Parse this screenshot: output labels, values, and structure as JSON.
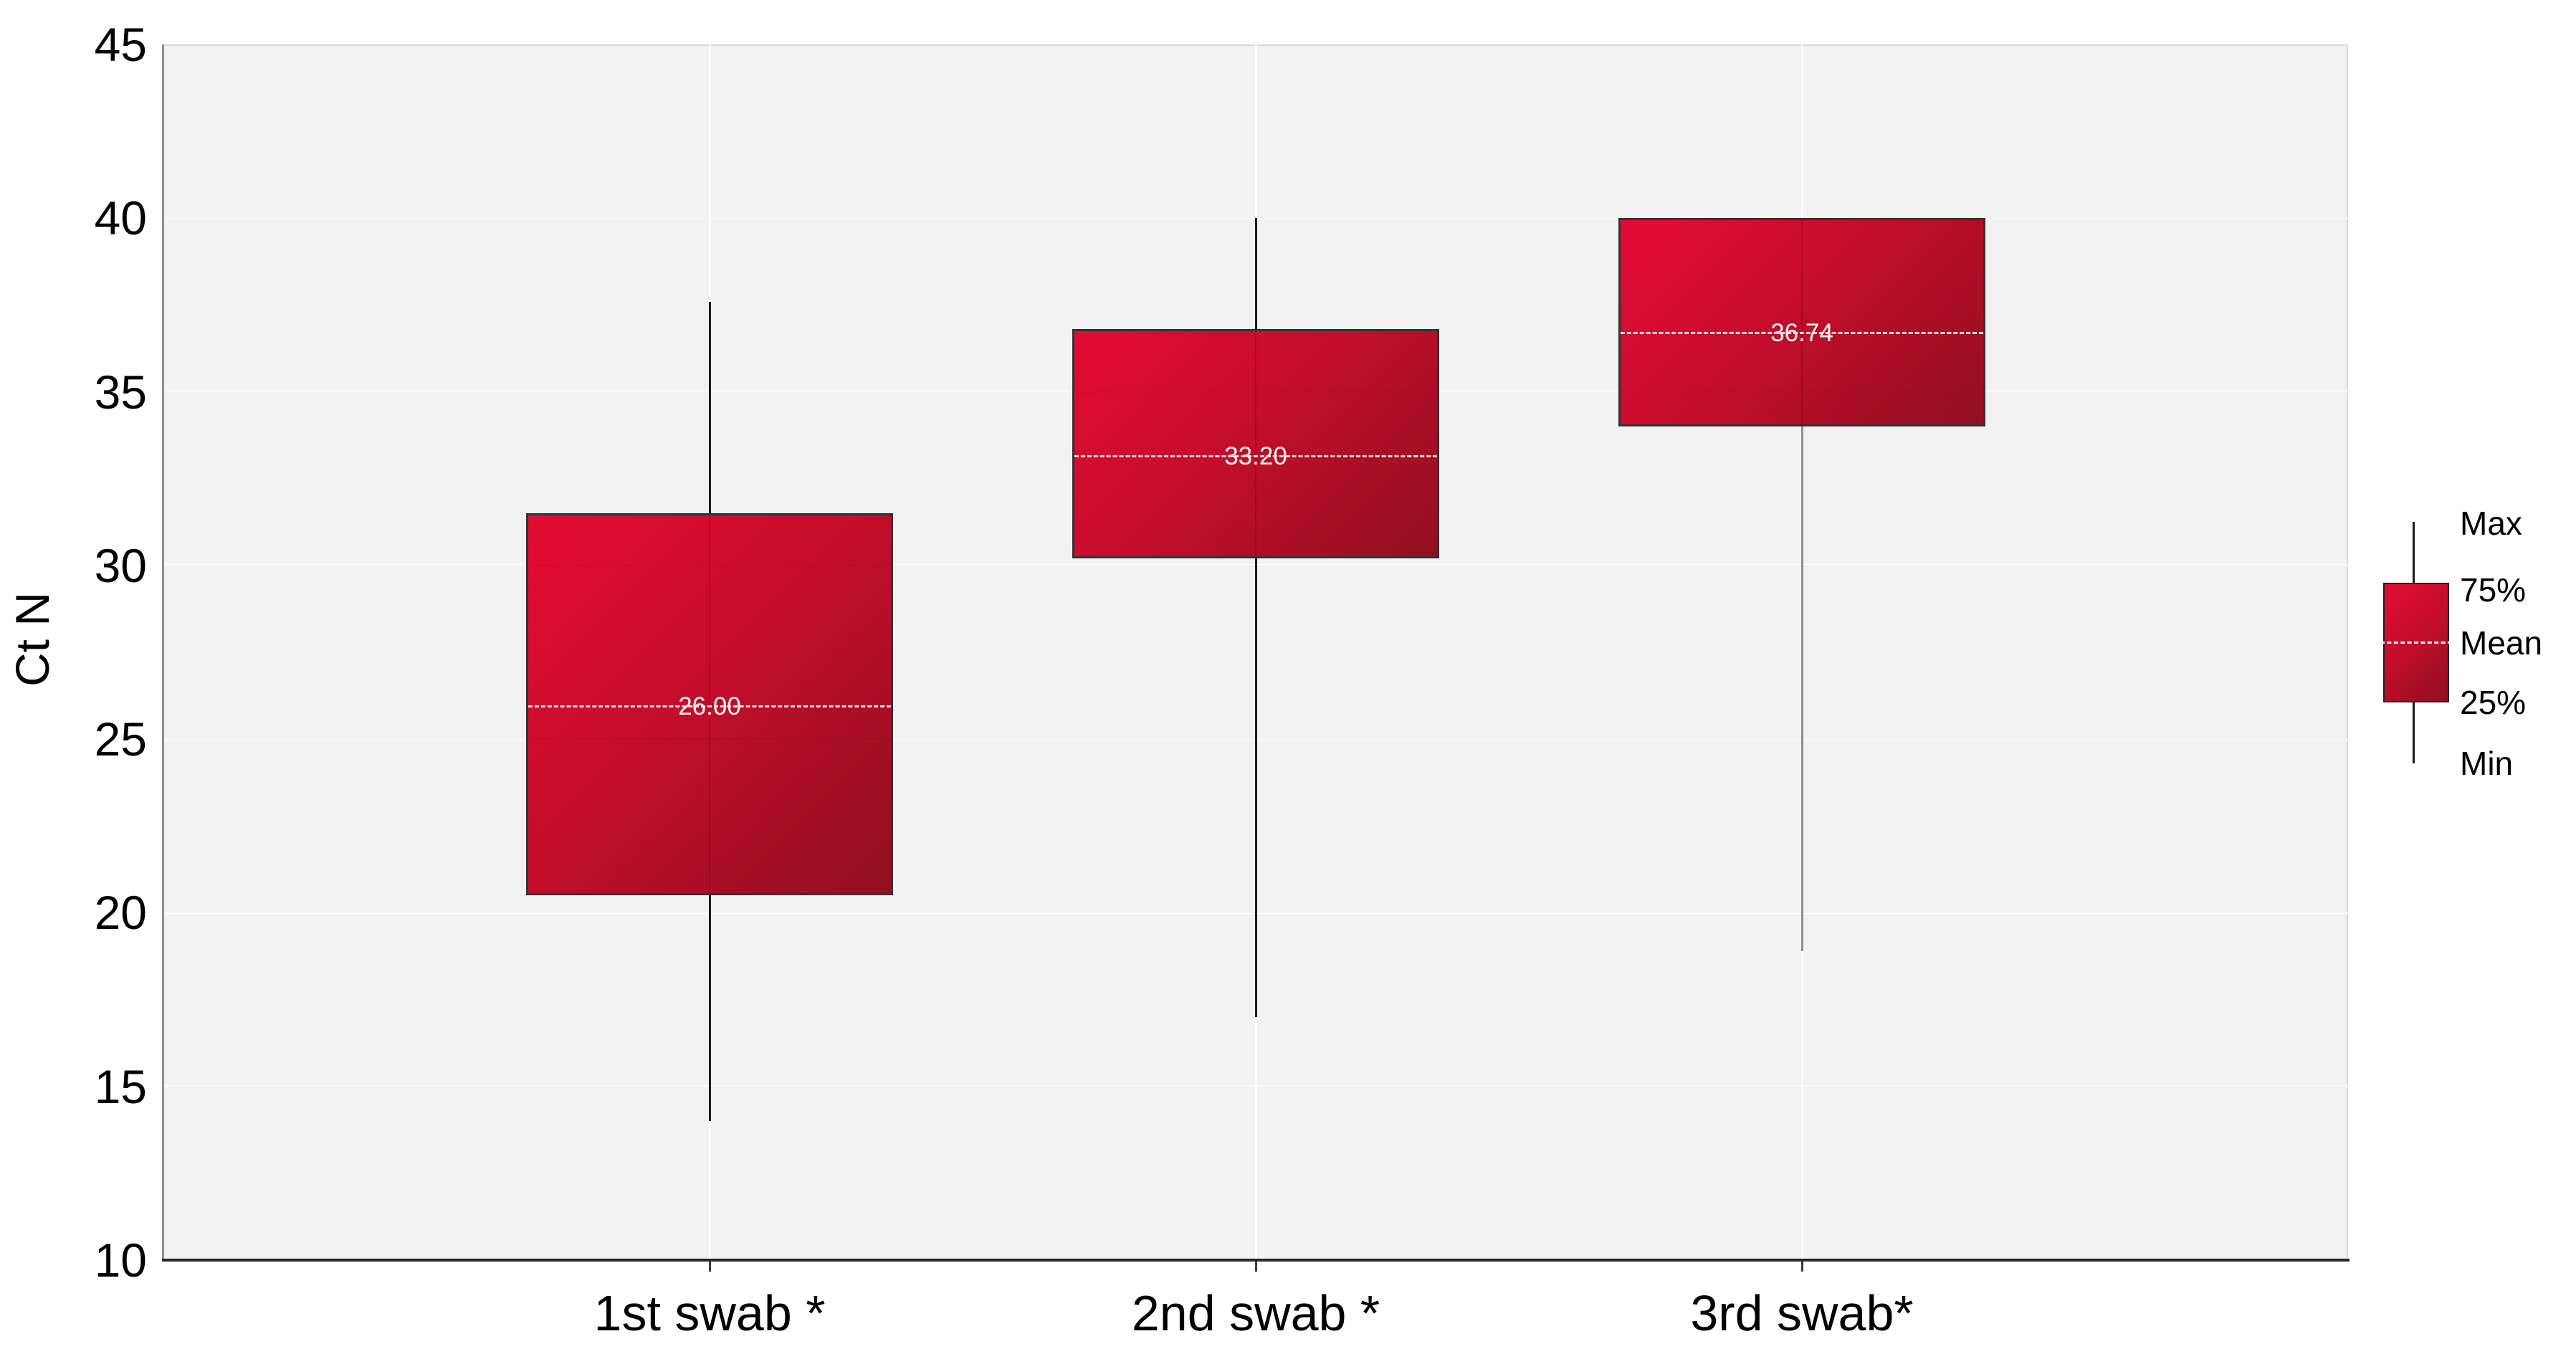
{
  "chart_data": {
    "type": "box",
    "title": "",
    "ylabel": "Ct N",
    "xlabel": "",
    "ylim": [
      10,
      45
    ],
    "yticks": [
      10,
      15,
      20,
      25,
      30,
      35,
      40,
      45
    ],
    "grid": true,
    "legend": {
      "position": "right",
      "items": [
        "Max",
        "75%",
        "Mean",
        "25%",
        "Min"
      ]
    },
    "categories": [
      "1st swab *",
      "2nd swab *",
      "3rd swab*"
    ],
    "series": [
      {
        "label": "1st swab *",
        "min": 14.0,
        "q1": 20.5,
        "mean": 26.0,
        "q3": 31.5,
        "max": 37.6,
        "mean_label": "26.00",
        "whisker_color": "#1c1c1c"
      },
      {
        "label": "2nd swab *",
        "min": 17.0,
        "q1": 30.2,
        "mean": 33.2,
        "q3": 36.8,
        "max": 40.0,
        "mean_label": "33.20",
        "whisker_color": "#1c1c1c"
      },
      {
        "label": "3rd swab*",
        "min": 18.9,
        "q1": 34.0,
        "mean": 36.74,
        "q3": 40.0,
        "max": 40.0,
        "mean_label": "36.74",
        "whisker_color": "#8f8f8f"
      }
    ],
    "colors": {
      "box_gradient_start": "#e30b33",
      "box_gradient_end": "#90101f",
      "box_border": "#333333",
      "plot_background": "#f2f2f2",
      "gridline": "#ffffff",
      "mean_line": "#ffffff",
      "axis_line": "#8c8c8c",
      "baseline": "#262626",
      "text": "#000000"
    }
  }
}
